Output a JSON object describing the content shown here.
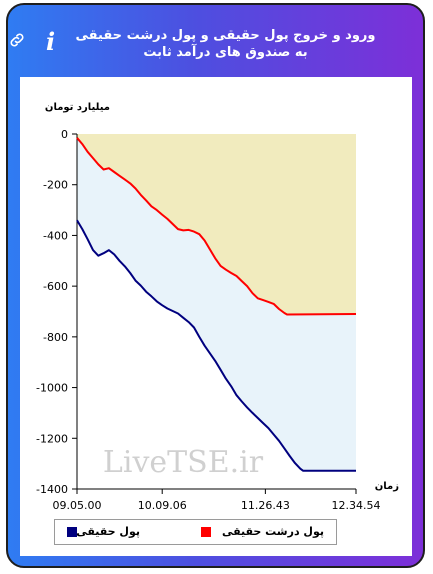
{
  "header": {
    "title": "ورود و خروج پول حقیقی و پول درشت حقیقی به صندوق های درآمد ثابت",
    "link_icon": "link-icon",
    "info_icon": "info-icon",
    "info_glyph": "i"
  },
  "watermark": "LiveTSE.ir",
  "colors": {
    "header_gradient_start": "#2f7cf2",
    "header_gradient_end": "#7d2fd8",
    "real_money": "#00007f",
    "big_real_money": "#ff0000",
    "fill_between": "#e8f3fa",
    "fill_above": "#f1ebbe"
  },
  "chart_data": {
    "type": "line",
    "ylabel": "میلیارد تومان",
    "xlabel": "زمان",
    "ylim": [
      -1400,
      0
    ],
    "yticks": [
      0,
      -200,
      -400,
      -600,
      -800,
      -1000,
      -1200,
      -1400
    ],
    "xticks": [
      "09.05.00",
      "10.09.06",
      "11.26.43",
      "12.34.54"
    ],
    "x_range": [
      "09.05.00",
      "12.34.54"
    ],
    "legend": "bottom",
    "grid": false,
    "series": [
      {
        "name": "پول حقیقی",
        "color": "#00007f",
        "points": [
          [
            "09.05.00",
            -340
          ],
          [
            "09.09.00",
            -375
          ],
          [
            "09.13.00",
            -415
          ],
          [
            "09.17.00",
            -458
          ],
          [
            "09.21.00",
            -480
          ],
          [
            "09.25.00",
            -470
          ],
          [
            "09.29.00",
            -458
          ],
          [
            "09.33.00",
            -475
          ],
          [
            "09.37.00",
            -500
          ],
          [
            "09.41.00",
            -522
          ],
          [
            "09.45.00",
            -548
          ],
          [
            "09.49.00",
            -578
          ],
          [
            "09.53.00",
            -598
          ],
          [
            "09.57.00",
            -622
          ],
          [
            "10.01.00",
            -640
          ],
          [
            "10.05.00",
            -660
          ],
          [
            "10.09.00",
            -675
          ],
          [
            "10.13.00",
            -688
          ],
          [
            "10.17.00",
            -698
          ],
          [
            "10.21.00",
            -708
          ],
          [
            "10.25.00",
            -725
          ],
          [
            "10.29.00",
            -742
          ],
          [
            "10.33.00",
            -763
          ],
          [
            "10.37.00",
            -800
          ],
          [
            "10.41.00",
            -835
          ],
          [
            "10.45.00",
            -865
          ],
          [
            "10.49.00",
            -895
          ],
          [
            "10.53.00",
            -930
          ],
          [
            "10.57.00",
            -965
          ],
          [
            "11.01.00",
            -995
          ],
          [
            "11.05.00",
            -1030
          ],
          [
            "11.09.00",
            -1055
          ],
          [
            "11.13.00",
            -1078
          ],
          [
            "11.17.00",
            -1100
          ],
          [
            "11.21.00",
            -1120
          ],
          [
            "11.25.00",
            -1140
          ],
          [
            "11.29.00",
            -1160
          ],
          [
            "11.33.00",
            -1185
          ],
          [
            "11.37.00",
            -1210
          ],
          [
            "11.41.00",
            -1240
          ],
          [
            "11.45.00",
            -1270
          ],
          [
            "11.49.00",
            -1298
          ],
          [
            "11.53.00",
            -1320
          ],
          [
            "11.55.00",
            -1328
          ],
          [
            "12.34.54",
            -1328
          ]
        ]
      },
      {
        "name": "پول درشت حقیقی",
        "color": "#ff0000",
        "points": [
          [
            "09.05.00",
            -15
          ],
          [
            "09.09.00",
            -40
          ],
          [
            "09.13.00",
            -70
          ],
          [
            "09.17.00",
            -95
          ],
          [
            "09.21.00",
            -120
          ],
          [
            "09.25.00",
            -140
          ],
          [
            "09.29.00",
            -135
          ],
          [
            "09.33.00",
            -150
          ],
          [
            "09.37.00",
            -165
          ],
          [
            "09.41.00",
            -180
          ],
          [
            "09.45.00",
            -195
          ],
          [
            "09.49.00",
            -215
          ],
          [
            "09.53.00",
            -240
          ],
          [
            "09.57.00",
            -262
          ],
          [
            "10.01.00",
            -285
          ],
          [
            "10.05.00",
            -300
          ],
          [
            "10.09.00",
            -318
          ],
          [
            "10.13.00",
            -335
          ],
          [
            "10.17.00",
            -355
          ],
          [
            "10.21.00",
            -375
          ],
          [
            "10.25.00",
            -380
          ],
          [
            "10.29.00",
            -378
          ],
          [
            "10.33.00",
            -385
          ],
          [
            "10.37.00",
            -395
          ],
          [
            "10.41.00",
            -420
          ],
          [
            "10.45.00",
            -455
          ],
          [
            "10.49.00",
            -490
          ],
          [
            "10.53.00",
            -520
          ],
          [
            "10.57.00",
            -535
          ],
          [
            "11.01.00",
            -548
          ],
          [
            "11.05.00",
            -560
          ],
          [
            "11.09.00",
            -580
          ],
          [
            "11.13.00",
            -600
          ],
          [
            "11.17.00",
            -628
          ],
          [
            "11.21.00",
            -648
          ],
          [
            "11.25.00",
            -655
          ],
          [
            "11.29.00",
            -662
          ],
          [
            "11.33.00",
            -670
          ],
          [
            "11.37.00",
            -690
          ],
          [
            "11.41.00",
            -706
          ],
          [
            "11.43.00",
            -712
          ],
          [
            "12.34.54",
            -710
          ]
        ]
      }
    ]
  }
}
